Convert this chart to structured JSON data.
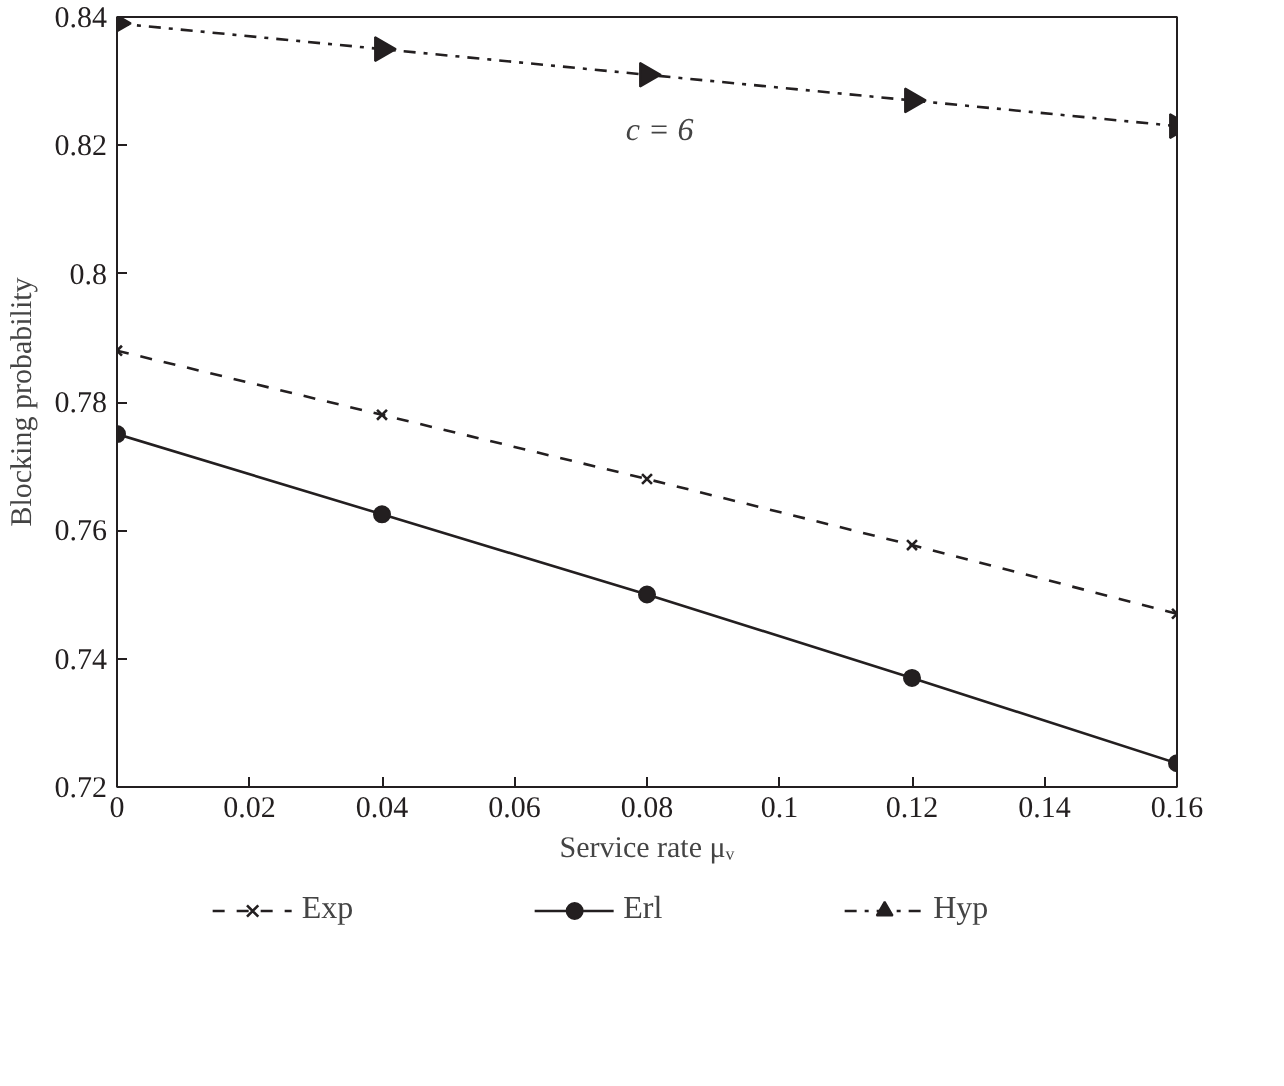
{
  "chart_data": {
    "type": "line",
    "xlabel": "Service rate μᵥ",
    "ylabel": "Blocking probability",
    "annotations": [
      "c = 6"
    ],
    "x": [
      0,
      0.04,
      0.08,
      0.12,
      0.16
    ],
    "series": [
      {
        "name": "Exp",
        "color": "#231f20",
        "values": [
          0.788,
          0.778,
          0.768,
          0.7577,
          0.747
        ],
        "marker": "cross",
        "line_style": "dashed"
      },
      {
        "name": "Erl",
        "color": "#231f20",
        "values": [
          0.775,
          0.7625,
          0.75,
          0.737,
          0.7237
        ],
        "marker": "circle",
        "line_style": "solid"
      },
      {
        "name": "Hyp",
        "color": "#231f20",
        "values": [
          0.839,
          0.835,
          0.831,
          0.827,
          0.823
        ],
        "marker": "triangle",
        "line_style": "dashdot"
      }
    ],
    "xlim": [
      0,
      0.16
    ],
    "ylim": [
      0.72,
      0.84
    ],
    "xticks": [
      0,
      0.02,
      0.04,
      0.06,
      0.08,
      {
        "value": 0.1,
        "label": "0.1"
      },
      0.12,
      0.14,
      0.16
    ],
    "yticks": [
      0.72,
      0.74,
      0.76,
      0.78,
      {
        "value": 0.8,
        "label": "0.8"
      },
      0.82,
      0.84
    ],
    "grid": false,
    "legend": "bottom"
  }
}
